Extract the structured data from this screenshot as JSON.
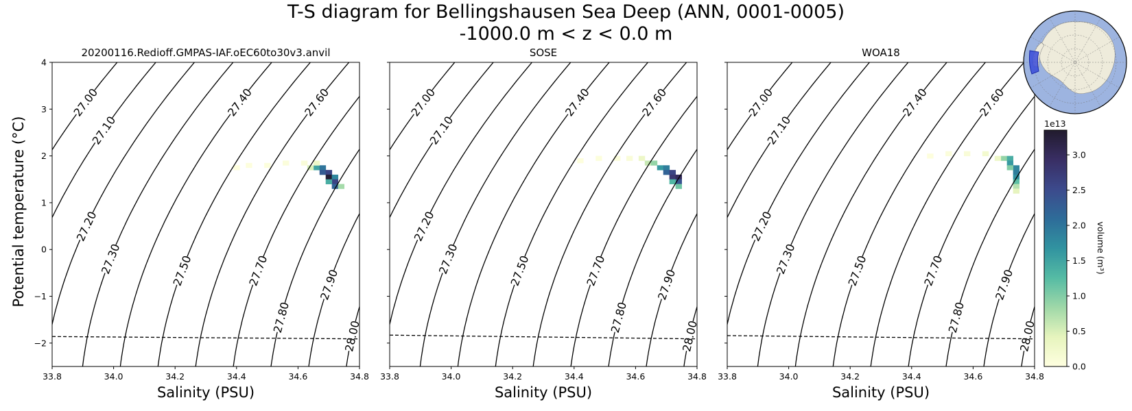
{
  "figure": {
    "title": "T-S diagram for Bellingshausen Sea Deep (ANN, 0001-0005)",
    "subtitle": "-1000.0 m < z < 0.0 m"
  },
  "colorbar": {
    "label": "volume (m³)",
    "exponent_label": "1e13",
    "ticks": [
      "0.0",
      "0.5",
      "1.0",
      "1.5",
      "2.0",
      "2.5",
      "3.0"
    ],
    "tick_values": [
      0,
      0.5,
      1.0,
      1.5,
      2.0,
      2.5,
      3.0
    ],
    "range": [
      0,
      3.35
    ],
    "colors": [
      "#ffffe0",
      "#e6f4bd",
      "#9fd8a8",
      "#55bba4",
      "#3193a0",
      "#2e6c99",
      "#3c4a8c",
      "#392e64",
      "#211b2d"
    ]
  },
  "inset_map": {
    "ocean_color": "#9db4e0",
    "land_color": "#eeebdb",
    "region_color": "#3a4bd8"
  },
  "chart_data": [
    {
      "type": "heatmap",
      "title": "20200116.Redioff.GMPAS-IAF.oEC60to30v3.anvil",
      "xlabel": "Salinity (PSU)",
      "ylabel": "Potential temperature (°C)",
      "xlim": [
        33.8,
        34.8
      ],
      "ylim": [
        -2.5,
        4.0
      ],
      "xticks": [
        "33.8",
        "34.0",
        "34.2",
        "34.4",
        "34.6",
        "34.8"
      ],
      "yticks": [
        "−2",
        "−1",
        "0",
        "1",
        "2",
        "3",
        "4"
      ],
      "freezing_line": [
        [
          33.8,
          -1.86
        ],
        [
          34.8,
          -1.91
        ]
      ],
      "density_contours": [
        "27.00",
        "27.10",
        "27.20",
        "27.30",
        "27.40",
        "27.50",
        "27.60",
        "27.70",
        "27.80",
        "27.90",
        "28.00"
      ],
      "cells": [
        [
          34.66,
          1.75,
          1.5
        ],
        [
          34.68,
          1.75,
          2.0
        ],
        [
          34.68,
          1.65,
          2.3
        ],
        [
          34.7,
          1.65,
          2.6
        ],
        [
          34.7,
          1.55,
          3.3
        ],
        [
          34.72,
          1.55,
          1.8
        ],
        [
          34.72,
          1.45,
          2.6
        ],
        [
          34.72,
          1.35,
          2.2
        ],
        [
          34.7,
          1.45,
          1.4
        ],
        [
          34.74,
          1.35,
          0.8
        ],
        [
          34.64,
          1.75,
          0.5
        ],
        [
          34.66,
          1.85,
          0.3
        ],
        [
          34.62,
          1.85,
          0.1
        ],
        [
          34.56,
          1.85,
          0.06
        ],
        [
          34.5,
          1.8,
          0.05
        ],
        [
          34.44,
          1.8,
          0.04
        ],
        [
          34.4,
          1.75,
          0.03
        ]
      ]
    },
    {
      "type": "heatmap",
      "title": "SOSE",
      "xlabel": "Salinity (PSU)",
      "ylabel": "",
      "xlim": [
        33.8,
        34.8
      ],
      "ylim": [
        -2.5,
        4.0
      ],
      "xticks": [
        "33.8",
        "34.0",
        "34.2",
        "34.4",
        "34.6",
        "34.8"
      ],
      "yticks": [],
      "freezing_line": [
        [
          33.8,
          -1.83
        ],
        [
          34.8,
          -1.91
        ]
      ],
      "density_contours": [
        "27.00",
        "27.10",
        "27.20",
        "27.30",
        "27.40",
        "27.50",
        "27.60",
        "27.70",
        "27.80",
        "27.90",
        "28.00"
      ],
      "cells": [
        [
          34.64,
          1.85,
          0.6
        ],
        [
          34.66,
          1.85,
          0.9
        ],
        [
          34.68,
          1.75,
          1.6
        ],
        [
          34.7,
          1.75,
          1.9
        ],
        [
          34.7,
          1.65,
          2.2
        ],
        [
          34.72,
          1.65,
          2.6
        ],
        [
          34.72,
          1.55,
          2.8
        ],
        [
          34.74,
          1.55,
          3.0
        ],
        [
          34.74,
          1.45,
          2.4
        ],
        [
          34.72,
          1.45,
          1.3
        ],
        [
          34.74,
          1.35,
          1.1
        ],
        [
          34.62,
          1.95,
          0.3
        ],
        [
          34.58,
          1.95,
          0.1
        ],
        [
          34.54,
          1.95,
          0.06
        ],
        [
          34.48,
          1.95,
          0.05
        ],
        [
          34.42,
          1.9,
          0.04
        ]
      ]
    },
    {
      "type": "heatmap",
      "title": "WOA18",
      "xlabel": "Salinity (PSU)",
      "ylabel": "",
      "xlim": [
        33.8,
        34.8
      ],
      "ylim": [
        -2.5,
        4.0
      ],
      "xticks": [
        "33.8",
        "34.0",
        "34.2",
        "34.4",
        "34.6",
        "34.8"
      ],
      "yticks": [],
      "freezing_line": [
        [
          33.8,
          -1.84
        ],
        [
          34.8,
          -1.91
        ]
      ],
      "density_contours": [
        "27.00",
        "27.10",
        "27.20",
        "27.30",
        "27.40",
        "27.50",
        "27.60",
        "27.70",
        "27.80",
        "27.90",
        "28.00"
      ],
      "cells": [
        [
          34.7,
          1.95,
          0.9
        ],
        [
          34.72,
          1.95,
          1.4
        ],
        [
          34.72,
          1.85,
          1.6
        ],
        [
          34.74,
          1.75,
          1.8
        ],
        [
          34.74,
          1.65,
          1.9
        ],
        [
          34.74,
          1.55,
          1.7
        ],
        [
          34.74,
          1.45,
          1.2
        ],
        [
          34.74,
          1.35,
          0.7
        ],
        [
          34.74,
          1.25,
          0.4
        ],
        [
          34.72,
          1.75,
          1.0
        ],
        [
          34.68,
          1.95,
          0.3
        ],
        [
          34.64,
          2.05,
          0.2
        ],
        [
          34.58,
          2.05,
          0.1
        ],
        [
          34.52,
          2.05,
          0.06
        ],
        [
          34.46,
          2.0,
          0.04
        ]
      ]
    }
  ]
}
